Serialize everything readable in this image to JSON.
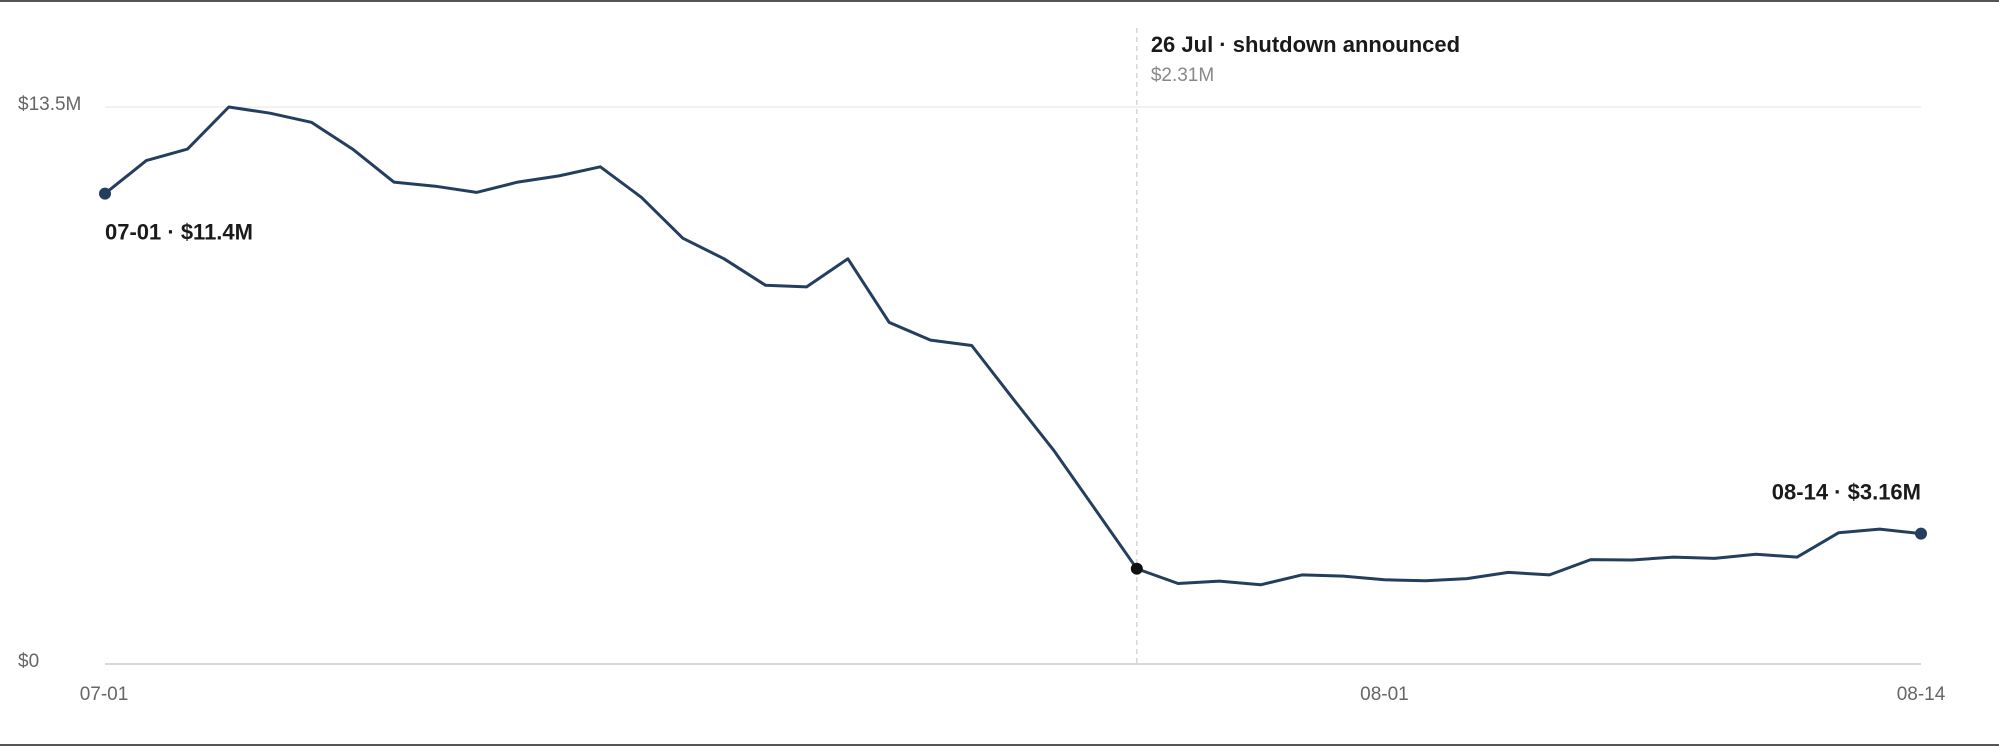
{
  "chart_data": {
    "type": "line",
    "categories": [
      "07-01",
      null,
      null,
      null,
      null,
      null,
      null,
      null,
      null,
      null,
      null,
      null,
      null,
      null,
      null,
      null,
      null,
      null,
      null,
      null,
      null,
      null,
      null,
      null,
      null,
      null,
      null,
      null,
      null,
      null,
      null,
      "08-01",
      null,
      null,
      null,
      null,
      null,
      null,
      null,
      null,
      null,
      null,
      null,
      null,
      "08-14"
    ],
    "values": [
      11.4,
      12.2,
      12.48,
      13.5,
      13.35,
      13.13,
      12.48,
      11.68,
      11.58,
      11.43,
      11.68,
      11.83,
      12.05,
      11.31,
      10.32,
      9.82,
      9.18,
      9.14,
      9.82,
      8.28,
      7.85,
      7.72,
      6.43,
      5.16,
      3.74,
      2.31,
      1.95,
      2.01,
      1.92,
      2.16,
      2.13,
      2.04,
      2.02,
      2.07,
      2.22,
      2.16,
      2.53,
      2.52,
      2.59,
      2.56,
      2.66,
      2.59,
      3.18,
      3.27,
      3.16
    ],
    "color": "#243f5e",
    "ylim": [
      0,
      13.5
    ],
    "yticks": [
      {
        "value": 0,
        "label": "$0"
      },
      {
        "value": 13.5,
        "label": "$13.5M"
      }
    ],
    "grid": true,
    "annotations": {
      "start": "07-01 · $11.4M",
      "end": "08-14 · $3.16M",
      "event": "26 Jul · shutdown announced",
      "event_value": "$2.31M"
    }
  }
}
